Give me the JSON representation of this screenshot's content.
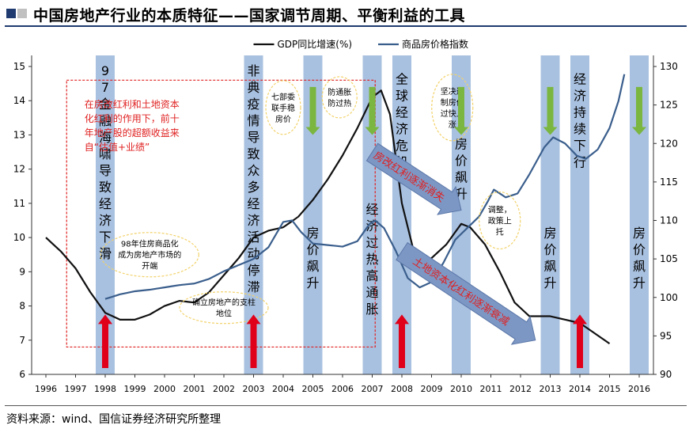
{
  "title": "中国房地产行业的本质特征——国家调节周期、平衡利益的工具",
  "source": "资料来源：wind、国信证券经济研究所整理",
  "colors": {
    "gdp_line": "#111111",
    "price_line": "#3a5e8c",
    "band": "#a9c1e0",
    "up_arrow": "#e0001a",
    "down_arrow": "#7ab640",
    "dashed_box": "#e02020",
    "note_text": "#e02020",
    "bubble": "#f2d26a",
    "trend_arrow": "#7d97c4"
  },
  "chart_data": {
    "type": "line",
    "x": [
      "1996",
      "1997",
      "1998",
      "1999",
      "2000",
      "2001",
      "2002",
      "2003",
      "2004",
      "2005",
      "2006",
      "2007",
      "2008",
      "2009",
      "2010",
      "2011",
      "2012",
      "2013",
      "2014",
      "2015",
      "2016"
    ],
    "ylim_left": [
      6,
      15
    ],
    "ylim_right": [
      90,
      130
    ],
    "y_ticks_left": [
      "6",
      "7",
      "8",
      "9",
      "10",
      "11",
      "12",
      "13",
      "14",
      "15"
    ],
    "y_ticks_right": [
      "90",
      "95",
      "100",
      "105",
      "110",
      "115",
      "120",
      "125",
      "130"
    ],
    "grid": false,
    "legend_position": "top",
    "series": [
      {
        "name": "GDP同比增速(%)",
        "axis": "left",
        "points": [
          {
            "x": 1996.0,
            "y": 10.0
          },
          {
            "x": 1996.5,
            "y": 9.6
          },
          {
            "x": 1997.0,
            "y": 9.1
          },
          {
            "x": 1997.5,
            "y": 8.4
          },
          {
            "x": 1998.0,
            "y": 7.8
          },
          {
            "x": 1998.5,
            "y": 7.6
          },
          {
            "x": 1999.0,
            "y": 7.6
          },
          {
            "x": 1999.5,
            "y": 7.75
          },
          {
            "x": 2000.0,
            "y": 8.0
          },
          {
            "x": 2000.5,
            "y": 8.15
          },
          {
            "x": 2001.0,
            "y": 8.1
          },
          {
            "x": 2001.5,
            "y": 8.4
          },
          {
            "x": 2002.0,
            "y": 8.9
          },
          {
            "x": 2002.5,
            "y": 9.4
          },
          {
            "x": 2003.0,
            "y": 10.0
          },
          {
            "x": 2003.5,
            "y": 10.2
          },
          {
            "x": 2004.0,
            "y": 10.3
          },
          {
            "x": 2004.5,
            "y": 10.6
          },
          {
            "x": 2005.0,
            "y": 11.1
          },
          {
            "x": 2005.5,
            "y": 11.7
          },
          {
            "x": 2006.0,
            "y": 12.4
          },
          {
            "x": 2006.5,
            "y": 13.2
          },
          {
            "x": 2007.0,
            "y": 14.1
          },
          {
            "x": 2007.3,
            "y": 14.3
          },
          {
            "x": 2007.6,
            "y": 13.6
          },
          {
            "x": 2008.0,
            "y": 11.0
          },
          {
            "x": 2008.4,
            "y": 9.6
          },
          {
            "x": 2008.8,
            "y": 9.3
          },
          {
            "x": 2009.0,
            "y": 9.4
          },
          {
            "x": 2009.5,
            "y": 9.8
          },
          {
            "x": 2010.0,
            "y": 10.4
          },
          {
            "x": 2010.3,
            "y": 10.3
          },
          {
            "x": 2010.8,
            "y": 9.8
          },
          {
            "x": 2011.3,
            "y": 9.0
          },
          {
            "x": 2011.8,
            "y": 8.1
          },
          {
            "x": 2012.3,
            "y": 7.7
          },
          {
            "x": 2013.0,
            "y": 7.7
          },
          {
            "x": 2013.5,
            "y": 7.6
          },
          {
            "x": 2014.0,
            "y": 7.5
          },
          {
            "x": 2014.5,
            "y": 7.2
          },
          {
            "x": 2015.0,
            "y": 6.9
          }
        ]
      },
      {
        "name": "商品房价格指数",
        "axis": "right",
        "points": [
          {
            "x": 1998.0,
            "y": 99.8
          },
          {
            "x": 1998.5,
            "y": 100.4
          },
          {
            "x": 1999.0,
            "y": 100.8
          },
          {
            "x": 1999.5,
            "y": 101.0
          },
          {
            "x": 2000.0,
            "y": 101.3
          },
          {
            "x": 2000.5,
            "y": 101.6
          },
          {
            "x": 2001.0,
            "y": 101.8
          },
          {
            "x": 2001.5,
            "y": 102.4
          },
          {
            "x": 2002.0,
            "y": 103.4
          },
          {
            "x": 2002.5,
            "y": 104.2
          },
          {
            "x": 2003.0,
            "y": 105.0
          },
          {
            "x": 2003.5,
            "y": 106.5
          },
          {
            "x": 2004.0,
            "y": 109.8
          },
          {
            "x": 2004.3,
            "y": 110.0
          },
          {
            "x": 2004.6,
            "y": 108.5
          },
          {
            "x": 2005.0,
            "y": 107.0
          },
          {
            "x": 2005.5,
            "y": 106.8
          },
          {
            "x": 2006.0,
            "y": 106.6
          },
          {
            "x": 2006.5,
            "y": 107.3
          },
          {
            "x": 2006.9,
            "y": 109.5
          },
          {
            "x": 2007.1,
            "y": 110.0
          },
          {
            "x": 2007.4,
            "y": 109.0
          },
          {
            "x": 2007.8,
            "y": 106.0
          },
          {
            "x": 2008.2,
            "y": 102.5
          },
          {
            "x": 2008.6,
            "y": 101.3
          },
          {
            "x": 2009.0,
            "y": 102.0
          },
          {
            "x": 2009.4,
            "y": 104.5
          },
          {
            "x": 2009.8,
            "y": 107.5
          },
          {
            "x": 2010.2,
            "y": 109.0
          },
          {
            "x": 2010.6,
            "y": 110.5
          },
          {
            "x": 2010.9,
            "y": 112.5
          },
          {
            "x": 2011.1,
            "y": 114.0
          },
          {
            "x": 2011.5,
            "y": 113.0
          },
          {
            "x": 2011.9,
            "y": 113.5
          },
          {
            "x": 2012.3,
            "y": 116.0
          },
          {
            "x": 2012.8,
            "y": 119.5
          },
          {
            "x": 2013.1,
            "y": 120.8
          },
          {
            "x": 2013.5,
            "y": 120.0
          },
          {
            "x": 2013.9,
            "y": 118.4
          },
          {
            "x": 2014.2,
            "y": 118.0
          },
          {
            "x": 2014.6,
            "y": 119.2
          },
          {
            "x": 2015.0,
            "y": 122.0
          },
          {
            "x": 2015.3,
            "y": 125.5
          },
          {
            "x": 2015.5,
            "y": 129.0
          }
        ]
      }
    ],
    "bands": [
      {
        "year": 1998,
        "label": "97金融海啸导致经济下滑",
        "arrow": "up"
      },
      {
        "year": 2003,
        "label": "非典疫情导致众多经济活动停滞",
        "arrow": "up"
      },
      {
        "year": 2005,
        "label": "房价飙升",
        "arrow": "down"
      },
      {
        "year": 2007,
        "label": "经济过热高通胀",
        "arrow": "down"
      },
      {
        "year": 2008,
        "label": "全球经济危机",
        "arrow": "up"
      },
      {
        "year": 2010,
        "label": "房价飙升",
        "arrow": "down"
      },
      {
        "year": 2013,
        "label": "房价飙升",
        "arrow": "down"
      },
      {
        "year": 2014,
        "label": "经济持续下行",
        "arrow": "up"
      },
      {
        "year": 2016,
        "label": "房价飙升",
        "arrow": "down"
      }
    ],
    "annotations": {
      "dashed_note": "在房改红利和土地资本化红利的作用下，前十年地产股的超额收益来自“估值+业绩”",
      "bubbles": [
        "98年住房商品化成为房地产市场的开端",
        "确立房地产的支柱地位",
        "七部委联手稳房价",
        "防通胀防过热",
        "坚决遏制房价过快上涨",
        "调整，政策上托"
      ],
      "trend_arrows": [
        "房改红利逐渐消失",
        "土地资本化红利逐渐衰减"
      ]
    }
  }
}
